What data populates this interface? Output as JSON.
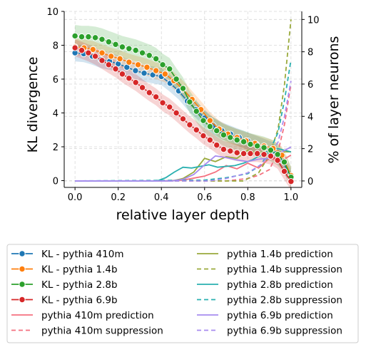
{
  "chart_data": {
    "type": "line",
    "xlabel": "relative layer depth",
    "ylabel_left": "KL divergence",
    "ylabel_right": "% of layer neurons",
    "xlim": [
      -0.05,
      1.05
    ],
    "ylim_left": [
      -0.4,
      10
    ],
    "ylim_right": [
      -0.4,
      10.5
    ],
    "x_ticks": [
      0.0,
      0.2,
      0.4,
      0.6,
      0.8,
      1.0
    ],
    "x_tick_labels": [
      "0.0",
      "0.2",
      "0.4",
      "0.6",
      "0.8",
      "1.0"
    ],
    "y_left_ticks": [
      0,
      2,
      4,
      6,
      8,
      10
    ],
    "y_left_tick_labels": [
      "0",
      "2",
      "4",
      "6",
      "8",
      "10"
    ],
    "y_right_ticks": [
      0,
      2,
      4,
      6,
      8,
      10
    ],
    "y_right_tick_labels": [
      "0",
      "2",
      "4",
      "6",
      "8",
      "10"
    ],
    "grid": true,
    "legend_placement": "below plot, two columns",
    "kl_series": [
      {
        "name": "KL - pythia 410m",
        "color": "#1f77b4",
        "band": 0.5,
        "x": [
          0.0,
          0.04,
          0.08,
          0.12,
          0.16,
          0.2,
          0.24,
          0.28,
          0.32,
          0.36,
          0.4,
          0.44,
          0.48,
          0.52,
          0.56,
          0.6,
          0.64,
          0.68,
          0.72,
          0.76,
          0.8,
          0.84,
          0.88,
          0.92,
          0.96,
          1.0
        ],
        "y": [
          7.55,
          7.5,
          7.35,
          7.15,
          7.05,
          6.9,
          6.7,
          6.5,
          6.35,
          6.25,
          6.15,
          5.75,
          5.3,
          4.7,
          4.2,
          3.7,
          3.25,
          2.95,
          2.75,
          2.55,
          2.35,
          2.15,
          1.95,
          1.75,
          1.2,
          0.15
        ]
      },
      {
        "name": "KL - pythia 1.4b",
        "color": "#ff7f0e",
        "band": 0.5,
        "x": [
          0.0,
          0.042,
          0.083,
          0.125,
          0.167,
          0.208,
          0.25,
          0.292,
          0.333,
          0.375,
          0.417,
          0.458,
          0.5,
          0.542,
          0.583,
          0.625,
          0.667,
          0.708,
          0.75,
          0.792,
          0.833,
          0.875,
          0.917,
          0.958,
          1.0
        ],
        "y": [
          7.9,
          7.85,
          7.75,
          7.55,
          7.35,
          7.2,
          7.0,
          6.85,
          6.7,
          6.5,
          6.3,
          5.9,
          5.4,
          4.8,
          4.2,
          3.55,
          3.05,
          2.75,
          2.55,
          2.35,
          2.2,
          2.05,
          1.9,
          1.5,
          0.3
        ]
      },
      {
        "name": "KL - pythia 2.8b",
        "color": "#2ca02c",
        "band": 0.65,
        "x": [
          0.0,
          0.031,
          0.062,
          0.094,
          0.125,
          0.156,
          0.188,
          0.219,
          0.25,
          0.281,
          0.312,
          0.344,
          0.375,
          0.406,
          0.438,
          0.469,
          0.5,
          0.531,
          0.562,
          0.594,
          0.625,
          0.656,
          0.688,
          0.719,
          0.75,
          0.781,
          0.812,
          0.844,
          0.875,
          0.906,
          0.938,
          0.969,
          1.0
        ],
        "y": [
          8.55,
          8.5,
          8.5,
          8.45,
          8.35,
          8.2,
          8.05,
          7.9,
          7.8,
          7.7,
          7.55,
          7.4,
          7.2,
          6.85,
          6.6,
          6.0,
          5.45,
          4.65,
          4.1,
          3.55,
          3.2,
          2.95,
          2.7,
          2.55,
          2.4,
          2.3,
          2.15,
          2.05,
          1.95,
          1.8,
          1.55,
          1.1,
          0.2
        ]
      },
      {
        "name": "KL - pythia 6.9b",
        "color": "#d62728",
        "band": 0.5,
        "x": [
          0.0,
          0.031,
          0.062,
          0.094,
          0.125,
          0.156,
          0.188,
          0.219,
          0.25,
          0.281,
          0.312,
          0.344,
          0.375,
          0.406,
          0.438,
          0.469,
          0.5,
          0.531,
          0.562,
          0.594,
          0.625,
          0.656,
          0.688,
          0.719,
          0.75,
          0.781,
          0.812,
          0.844,
          0.875,
          0.906,
          0.938,
          0.969,
          1.0
        ],
        "y": [
          7.85,
          7.7,
          7.55,
          7.35,
          7.1,
          6.85,
          6.6,
          6.3,
          6.05,
          5.8,
          5.5,
          5.2,
          4.95,
          4.6,
          4.35,
          4.0,
          3.65,
          3.3,
          3.0,
          2.65,
          2.4,
          2.1,
          1.85,
          1.75,
          1.65,
          1.6,
          1.6,
          1.6,
          1.55,
          1.45,
          1.2,
          0.55,
          -0.05
        ]
      }
    ],
    "neuron_series": [
      {
        "name": "pythia 410m prediction",
        "color": "#f4707f",
        "dash": false,
        "x": [
          0.0,
          0.4,
          0.5,
          0.6,
          0.65,
          0.7,
          0.75,
          0.8,
          0.85,
          0.9,
          0.95,
          1.0
        ],
        "y": [
          0.0,
          0.0,
          0.05,
          0.3,
          0.55,
          0.95,
          0.75,
          1.1,
          0.8,
          1.4,
          1.2,
          1.6
        ]
      },
      {
        "name": "pythia 410m suppression",
        "color": "#f4707f",
        "dash": true,
        "x": [
          0.0,
          0.7,
          0.8,
          0.85,
          0.9,
          0.94,
          0.97,
          1.0
        ],
        "y": [
          0.0,
          0.0,
          0.15,
          0.35,
          0.7,
          1.8,
          3.5,
          6.0
        ]
      },
      {
        "name": "pythia 1.4b prediction",
        "color": "#9aaa3c",
        "dash": false,
        "x": [
          0.0,
          0.45,
          0.5,
          0.55,
          0.6,
          0.65,
          0.7,
          0.75,
          0.8,
          0.85,
          0.9,
          0.95,
          1.0
        ],
        "y": [
          0.0,
          0.0,
          0.15,
          0.55,
          1.4,
          1.2,
          1.5,
          1.4,
          1.9,
          1.7,
          2.0,
          1.8,
          1.8
        ]
      },
      {
        "name": "pythia 1.4b suppression",
        "color": "#9aaa3c",
        "dash": true,
        "x": [
          0.0,
          0.78,
          0.85,
          0.9,
          0.94,
          0.97,
          1.0
        ],
        "y": [
          0.0,
          0.0,
          0.5,
          1.6,
          3.2,
          6.0,
          10.0
        ]
      },
      {
        "name": "pythia 2.8b prediction",
        "color": "#2ab0b0",
        "dash": false,
        "x": [
          0.0,
          0.38,
          0.42,
          0.46,
          0.5,
          0.54,
          0.58,
          0.62,
          0.66,
          0.7,
          0.74,
          0.78,
          0.82,
          0.86,
          0.9,
          0.94,
          0.97,
          1.0
        ],
        "y": [
          0.0,
          0.0,
          0.2,
          0.55,
          0.85,
          0.8,
          0.9,
          1.0,
          0.85,
          0.9,
          0.95,
          1.1,
          1.3,
          1.6,
          1.9,
          2.0,
          1.9,
          1.8
        ]
      },
      {
        "name": "pythia 2.8b suppression",
        "color": "#2ab0b0",
        "dash": true,
        "x": [
          0.0,
          0.6,
          0.7,
          0.8,
          0.86,
          0.9,
          0.94,
          0.97,
          1.0
        ],
        "y": [
          0.0,
          0.05,
          0.2,
          0.45,
          1.0,
          1.8,
          3.0,
          5.0,
          7.5
        ]
      },
      {
        "name": "pythia 6.9b prediction",
        "color": "#a78bef",
        "dash": false,
        "x": [
          0.0,
          0.45,
          0.5,
          0.55,
          0.6,
          0.65,
          0.7,
          0.75,
          0.8,
          0.85,
          0.9,
          0.95,
          1.0
        ],
        "y": [
          0.0,
          0.0,
          0.1,
          0.4,
          1.0,
          1.55,
          1.45,
          1.3,
          1.2,
          1.35,
          1.4,
          1.75,
          2.1
        ]
      },
      {
        "name": "pythia 6.9b suppression",
        "color": "#a78bef",
        "dash": true,
        "x": [
          0.0,
          0.62,
          0.7,
          0.8,
          0.86,
          0.9,
          0.94,
          0.97,
          1.0
        ],
        "y": [
          0.0,
          0.0,
          0.15,
          0.5,
          1.0,
          1.6,
          2.4,
          4.0,
          6.2
        ]
      }
    ]
  },
  "legend": {
    "left": [
      {
        "label": "KL - pythia 410m",
        "color": "#1f77b4",
        "style": "marker"
      },
      {
        "label": "KL - pythia 1.4b",
        "color": "#ff7f0e",
        "style": "marker"
      },
      {
        "label": "KL - pythia 2.8b",
        "color": "#2ca02c",
        "style": "marker"
      },
      {
        "label": "KL - pythia 6.9b",
        "color": "#d62728",
        "style": "marker"
      },
      {
        "label": "pythia 410m prediction",
        "color": "#f4707f",
        "style": "solid"
      },
      {
        "label": "pythia 410m suppression",
        "color": "#f4707f",
        "style": "dash"
      }
    ],
    "right": [
      {
        "label": "pythia 1.4b prediction",
        "color": "#9aaa3c",
        "style": "solid"
      },
      {
        "label": "pythia 1.4b suppression",
        "color": "#9aaa3c",
        "style": "dash"
      },
      {
        "label": "pythia 2.8b prediction",
        "color": "#2ab0b0",
        "style": "solid"
      },
      {
        "label": "pythia 2.8b suppression",
        "color": "#2ab0b0",
        "style": "dash"
      },
      {
        "label": "pythia 6.9b prediction",
        "color": "#a78bef",
        "style": "solid"
      },
      {
        "label": "pythia 6.9b suppression",
        "color": "#a78bef",
        "style": "dash"
      }
    ]
  }
}
